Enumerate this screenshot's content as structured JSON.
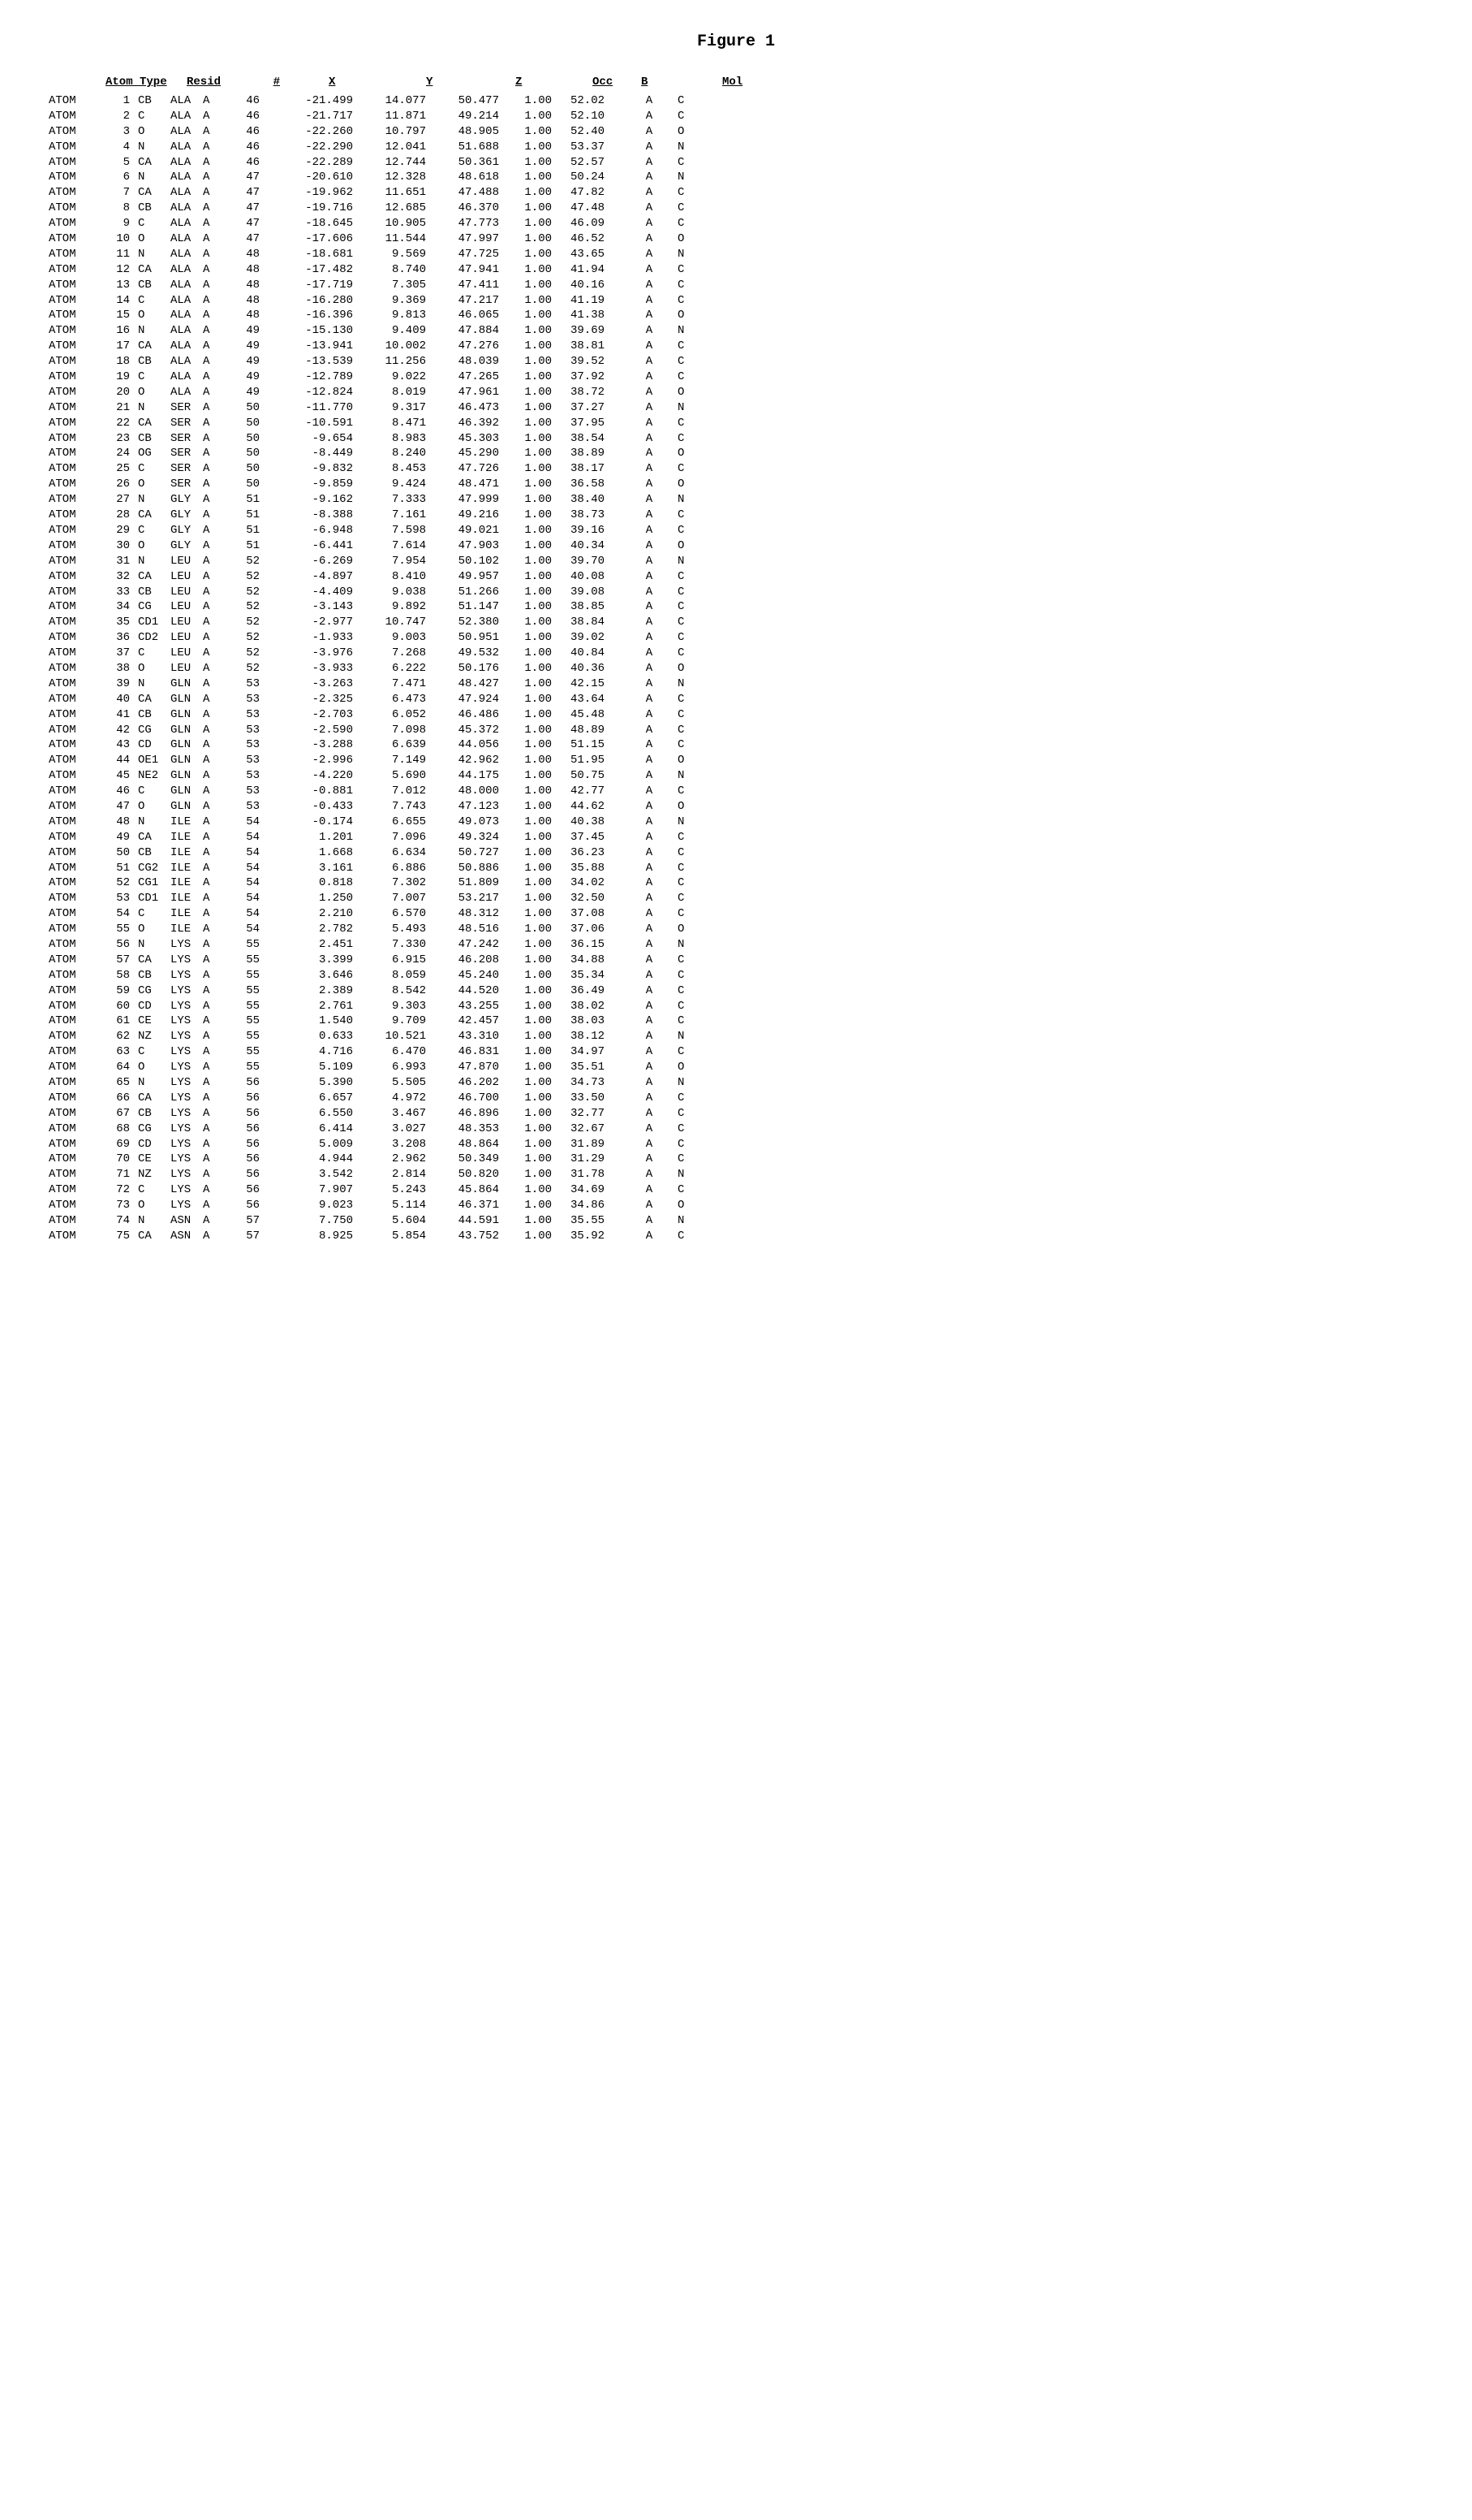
{
  "title": "Figure 1",
  "headers": {
    "atom_type": "Atom Type",
    "resid": "Resid",
    "num": "#",
    "x": "X",
    "y": "Y",
    "z": "Z",
    "occ": "Occ",
    "b": "B",
    "mol": "Mol"
  },
  "rows": [
    [
      "ATOM",
      "1",
      "CB",
      "ALA",
      "A",
      "46",
      "-21.499",
      "14.077",
      "50.477",
      "1.00",
      "52.02",
      "A",
      "C"
    ],
    [
      "ATOM",
      "2",
      "C",
      "ALA",
      "A",
      "46",
      "-21.717",
      "11.871",
      "49.214",
      "1.00",
      "52.10",
      "A",
      "C"
    ],
    [
      "ATOM",
      "3",
      "O",
      "ALA",
      "A",
      "46",
      "-22.260",
      "10.797",
      "48.905",
      "1.00",
      "52.40",
      "A",
      "O"
    ],
    [
      "ATOM",
      "4",
      "N",
      "ALA",
      "A",
      "46",
      "-22.290",
      "12.041",
      "51.688",
      "1.00",
      "53.37",
      "A",
      "N"
    ],
    [
      "ATOM",
      "5",
      "CA",
      "ALA",
      "A",
      "46",
      "-22.289",
      "12.744",
      "50.361",
      "1.00",
      "52.57",
      "A",
      "C"
    ],
    [
      "ATOM",
      "6",
      "N",
      "ALA",
      "A",
      "47",
      "-20.610",
      "12.328",
      "48.618",
      "1.00",
      "50.24",
      "A",
      "N"
    ],
    [
      "ATOM",
      "7",
      "CA",
      "ALA",
      "A",
      "47",
      "-19.962",
      "11.651",
      "47.488",
      "1.00",
      "47.82",
      "A",
      "C"
    ],
    [
      "ATOM",
      "8",
      "CB",
      "ALA",
      "A",
      "47",
      "-19.716",
      "12.685",
      "46.370",
      "1.00",
      "47.48",
      "A",
      "C"
    ],
    [
      "ATOM",
      "9",
      "C",
      "ALA",
      "A",
      "47",
      "-18.645",
      "10.905",
      "47.773",
      "1.00",
      "46.09",
      "A",
      "C"
    ],
    [
      "ATOM",
      "10",
      "O",
      "ALA",
      "A",
      "47",
      "-17.606",
      "11.544",
      "47.997",
      "1.00",
      "46.52",
      "A",
      "O"
    ],
    [
      "ATOM",
      "11",
      "N",
      "ALA",
      "A",
      "48",
      "-18.681",
      "9.569",
      "47.725",
      "1.00",
      "43.65",
      "A",
      "N"
    ],
    [
      "ATOM",
      "12",
      "CA",
      "ALA",
      "A",
      "48",
      "-17.482",
      "8.740",
      "47.941",
      "1.00",
      "41.94",
      "A",
      "C"
    ],
    [
      "ATOM",
      "13",
      "CB",
      "ALA",
      "A",
      "48",
      "-17.719",
      "7.305",
      "47.411",
      "1.00",
      "40.16",
      "A",
      "C"
    ],
    [
      "ATOM",
      "14",
      "C",
      "ALA",
      "A",
      "48",
      "-16.280",
      "9.369",
      "47.217",
      "1.00",
      "41.19",
      "A",
      "C"
    ],
    [
      "ATOM",
      "15",
      "O",
      "ALA",
      "A",
      "48",
      "-16.396",
      "9.813",
      "46.065",
      "1.00",
      "41.38",
      "A",
      "O"
    ],
    [
      "ATOM",
      "16",
      "N",
      "ALA",
      "A",
      "49",
      "-15.130",
      "9.409",
      "47.884",
      "1.00",
      "39.69",
      "A",
      "N"
    ],
    [
      "ATOM",
      "17",
      "CA",
      "ALA",
      "A",
      "49",
      "-13.941",
      "10.002",
      "47.276",
      "1.00",
      "38.81",
      "A",
      "C"
    ],
    [
      "ATOM",
      "18",
      "CB",
      "ALA",
      "A",
      "49",
      "-13.539",
      "11.256",
      "48.039",
      "1.00",
      "39.52",
      "A",
      "C"
    ],
    [
      "ATOM",
      "19",
      "C",
      "ALA",
      "A",
      "49",
      "-12.789",
      "9.022",
      "47.265",
      "1.00",
      "37.92",
      "A",
      "C"
    ],
    [
      "ATOM",
      "20",
      "O",
      "ALA",
      "A",
      "49",
      "-12.824",
      "8.019",
      "47.961",
      "1.00",
      "38.72",
      "A",
      "O"
    ],
    [
      "ATOM",
      "21",
      "N",
      "SER",
      "A",
      "50",
      "-11.770",
      "9.317",
      "46.473",
      "1.00",
      "37.27",
      "A",
      "N"
    ],
    [
      "ATOM",
      "22",
      "CA",
      "SER",
      "A",
      "50",
      "-10.591",
      "8.471",
      "46.392",
      "1.00",
      "37.95",
      "A",
      "C"
    ],
    [
      "ATOM",
      "23",
      "CB",
      "SER",
      "A",
      "50",
      "-9.654",
      "8.983",
      "45.303",
      "1.00",
      "38.54",
      "A",
      "C"
    ],
    [
      "ATOM",
      "24",
      "OG",
      "SER",
      "A",
      "50",
      "-8.449",
      "8.240",
      "45.290",
      "1.00",
      "38.89",
      "A",
      "O"
    ],
    [
      "ATOM",
      "25",
      "C",
      "SER",
      "A",
      "50",
      "-9.832",
      "8.453",
      "47.726",
      "1.00",
      "38.17",
      "A",
      "C"
    ],
    [
      "ATOM",
      "26",
      "O",
      "SER",
      "A",
      "50",
      "-9.859",
      "9.424",
      "48.471",
      "1.00",
      "36.58",
      "A",
      "O"
    ],
    [
      "ATOM",
      "27",
      "N",
      "GLY",
      "A",
      "51",
      "-9.162",
      "7.333",
      "47.999",
      "1.00",
      "38.40",
      "A",
      "N"
    ],
    [
      "ATOM",
      "28",
      "CA",
      "GLY",
      "A",
      "51",
      "-8.388",
      "7.161",
      "49.216",
      "1.00",
      "38.73",
      "A",
      "C"
    ],
    [
      "ATOM",
      "29",
      "C",
      "GLY",
      "A",
      "51",
      "-6.948",
      "7.598",
      "49.021",
      "1.00",
      "39.16",
      "A",
      "C"
    ],
    [
      "ATOM",
      "30",
      "O",
      "GLY",
      "A",
      "51",
      "-6.441",
      "7.614",
      "47.903",
      "1.00",
      "40.34",
      "A",
      "O"
    ],
    [
      "ATOM",
      "31",
      "N",
      "LEU",
      "A",
      "52",
      "-6.269",
      "7.954",
      "50.102",
      "1.00",
      "39.70",
      "A",
      "N"
    ],
    [
      "ATOM",
      "32",
      "CA",
      "LEU",
      "A",
      "52",
      "-4.897",
      "8.410",
      "49.957",
      "1.00",
      "40.08",
      "A",
      "C"
    ],
    [
      "ATOM",
      "33",
      "CB",
      "LEU",
      "A",
      "52",
      "-4.409",
      "9.038",
      "51.266",
      "1.00",
      "39.08",
      "A",
      "C"
    ],
    [
      "ATOM",
      "34",
      "CG",
      "LEU",
      "A",
      "52",
      "-3.143",
      "9.892",
      "51.147",
      "1.00",
      "38.85",
      "A",
      "C"
    ],
    [
      "ATOM",
      "35",
      "CD1",
      "LEU",
      "A",
      "52",
      "-2.977",
      "10.747",
      "52.380",
      "1.00",
      "38.84",
      "A",
      "C"
    ],
    [
      "ATOM",
      "36",
      "CD2",
      "LEU",
      "A",
      "52",
      "-1.933",
      "9.003",
      "50.951",
      "1.00",
      "39.02",
      "A",
      "C"
    ],
    [
      "ATOM",
      "37",
      "C",
      "LEU",
      "A",
      "52",
      "-3.976",
      "7.268",
      "49.532",
      "1.00",
      "40.84",
      "A",
      "C"
    ],
    [
      "ATOM",
      "38",
      "O",
      "LEU",
      "A",
      "52",
      "-3.933",
      "6.222",
      "50.176",
      "1.00",
      "40.36",
      "A",
      "O"
    ],
    [
      "ATOM",
      "39",
      "N",
      "GLN",
      "A",
      "53",
      "-3.263",
      "7.471",
      "48.427",
      "1.00",
      "42.15",
      "A",
      "N"
    ],
    [
      "ATOM",
      "40",
      "CA",
      "GLN",
      "A",
      "53",
      "-2.325",
      "6.473",
      "47.924",
      "1.00",
      "43.64",
      "A",
      "C"
    ],
    [
      "ATOM",
      "41",
      "CB",
      "GLN",
      "A",
      "53",
      "-2.703",
      "6.052",
      "46.486",
      "1.00",
      "45.48",
      "A",
      "C"
    ],
    [
      "ATOM",
      "42",
      "CG",
      "GLN",
      "A",
      "53",
      "-2.590",
      "7.098",
      "45.372",
      "1.00",
      "48.89",
      "A",
      "C"
    ],
    [
      "ATOM",
      "43",
      "CD",
      "GLN",
      "A",
      "53",
      "-3.288",
      "6.639",
      "44.056",
      "1.00",
      "51.15",
      "A",
      "C"
    ],
    [
      "ATOM",
      "44",
      "OE1",
      "GLN",
      "A",
      "53",
      "-2.996",
      "7.149",
      "42.962",
      "1.00",
      "51.95",
      "A",
      "O"
    ],
    [
      "ATOM",
      "45",
      "NE2",
      "GLN",
      "A",
      "53",
      "-4.220",
      "5.690",
      "44.175",
      "1.00",
      "50.75",
      "A",
      "N"
    ],
    [
      "ATOM",
      "46",
      "C",
      "GLN",
      "A",
      "53",
      "-0.881",
      "7.012",
      "48.000",
      "1.00",
      "42.77",
      "A",
      "C"
    ],
    [
      "ATOM",
      "47",
      "O",
      "GLN",
      "A",
      "53",
      "-0.433",
      "7.743",
      "47.123",
      "1.00",
      "44.62",
      "A",
      "O"
    ],
    [
      "ATOM",
      "48",
      "N",
      "ILE",
      "A",
      "54",
      "-0.174",
      "6.655",
      "49.073",
      "1.00",
      "40.38",
      "A",
      "N"
    ],
    [
      "ATOM",
      "49",
      "CA",
      "ILE",
      "A",
      "54",
      "1.201",
      "7.096",
      "49.324",
      "1.00",
      "37.45",
      "A",
      "C"
    ],
    [
      "ATOM",
      "50",
      "CB",
      "ILE",
      "A",
      "54",
      "1.668",
      "6.634",
      "50.727",
      "1.00",
      "36.23",
      "A",
      "C"
    ],
    [
      "ATOM",
      "51",
      "CG2",
      "ILE",
      "A",
      "54",
      "3.161",
      "6.886",
      "50.886",
      "1.00",
      "35.88",
      "A",
      "C"
    ],
    [
      "ATOM",
      "52",
      "CG1",
      "ILE",
      "A",
      "54",
      "0.818",
      "7.302",
      "51.809",
      "1.00",
      "34.02",
      "A",
      "C"
    ],
    [
      "ATOM",
      "53",
      "CD1",
      "ILE",
      "A",
      "54",
      "1.250",
      "7.007",
      "53.217",
      "1.00",
      "32.50",
      "A",
      "C"
    ],
    [
      "ATOM",
      "54",
      "C",
      "ILE",
      "A",
      "54",
      "2.210",
      "6.570",
      "48.312",
      "1.00",
      "37.08",
      "A",
      "C"
    ],
    [
      "ATOM",
      "55",
      "O",
      "ILE",
      "A",
      "54",
      "2.782",
      "5.493",
      "48.516",
      "1.00",
      "37.06",
      "A",
      "O"
    ],
    [
      "ATOM",
      "56",
      "N",
      "LYS",
      "A",
      "55",
      "2.451",
      "7.330",
      "47.242",
      "1.00",
      "36.15",
      "A",
      "N"
    ],
    [
      "ATOM",
      "57",
      "CA",
      "LYS",
      "A",
      "55",
      "3.399",
      "6.915",
      "46.208",
      "1.00",
      "34.88",
      "A",
      "C"
    ],
    [
      "ATOM",
      "58",
      "CB",
      "LYS",
      "A",
      "55",
      "3.646",
      "8.059",
      "45.240",
      "1.00",
      "35.34",
      "A",
      "C"
    ],
    [
      "ATOM",
      "59",
      "CG",
      "LYS",
      "A",
      "55",
      "2.389",
      "8.542",
      "44.520",
      "1.00",
      "36.49",
      "A",
      "C"
    ],
    [
      "ATOM",
      "60",
      "CD",
      "LYS",
      "A",
      "55",
      "2.761",
      "9.303",
      "43.255",
      "1.00",
      "38.02",
      "A",
      "C"
    ],
    [
      "ATOM",
      "61",
      "CE",
      "LYS",
      "A",
      "55",
      "1.540",
      "9.709",
      "42.457",
      "1.00",
      "38.03",
      "A",
      "C"
    ],
    [
      "ATOM",
      "62",
      "NZ",
      "LYS",
      "A",
      "55",
      "0.633",
      "10.521",
      "43.310",
      "1.00",
      "38.12",
      "A",
      "N"
    ],
    [
      "ATOM",
      "63",
      "C",
      "LYS",
      "A",
      "55",
      "4.716",
      "6.470",
      "46.831",
      "1.00",
      "34.97",
      "A",
      "C"
    ],
    [
      "ATOM",
      "64",
      "O",
      "LYS",
      "A",
      "55",
      "5.109",
      "6.993",
      "47.870",
      "1.00",
      "35.51",
      "A",
      "O"
    ],
    [
      "ATOM",
      "65",
      "N",
      "LYS",
      "A",
      "56",
      "5.390",
      "5.505",
      "46.202",
      "1.00",
      "34.73",
      "A",
      "N"
    ],
    [
      "ATOM",
      "66",
      "CA",
      "LYS",
      "A",
      "56",
      "6.657",
      "4.972",
      "46.700",
      "1.00",
      "33.50",
      "A",
      "C"
    ],
    [
      "ATOM",
      "67",
      "CB",
      "LYS",
      "A",
      "56",
      "6.550",
      "3.467",
      "46.896",
      "1.00",
      "32.77",
      "A",
      "C"
    ],
    [
      "ATOM",
      "68",
      "CG",
      "LYS",
      "A",
      "56",
      "6.414",
      "3.027",
      "48.353",
      "1.00",
      "32.67",
      "A",
      "C"
    ],
    [
      "ATOM",
      "69",
      "CD",
      "LYS",
      "A",
      "56",
      "5.009",
      "3.208",
      "48.864",
      "1.00",
      "31.89",
      "A",
      "C"
    ],
    [
      "ATOM",
      "70",
      "CE",
      "LYS",
      "A",
      "56",
      "4.944",
      "2.962",
      "50.349",
      "1.00",
      "31.29",
      "A",
      "C"
    ],
    [
      "ATOM",
      "71",
      "NZ",
      "LYS",
      "A",
      "56",
      "3.542",
      "2.814",
      "50.820",
      "1.00",
      "31.78",
      "A",
      "N"
    ],
    [
      "ATOM",
      "72",
      "C",
      "LYS",
      "A",
      "56",
      "7.907",
      "5.243",
      "45.864",
      "1.00",
      "34.69",
      "A",
      "C"
    ],
    [
      "ATOM",
      "73",
      "O",
      "LYS",
      "A",
      "56",
      "9.023",
      "5.114",
      "46.371",
      "1.00",
      "34.86",
      "A",
      "O"
    ],
    [
      "ATOM",
      "74",
      "N",
      "ASN",
      "A",
      "57",
      "7.750",
      "5.604",
      "44.591",
      "1.00",
      "35.55",
      "A",
      "N"
    ],
    [
      "ATOM",
      "75",
      "CA",
      "ASN",
      "A",
      "57",
      "8.925",
      "5.854",
      "43.752",
      "1.00",
      "35.92",
      "A",
      "C"
    ]
  ]
}
